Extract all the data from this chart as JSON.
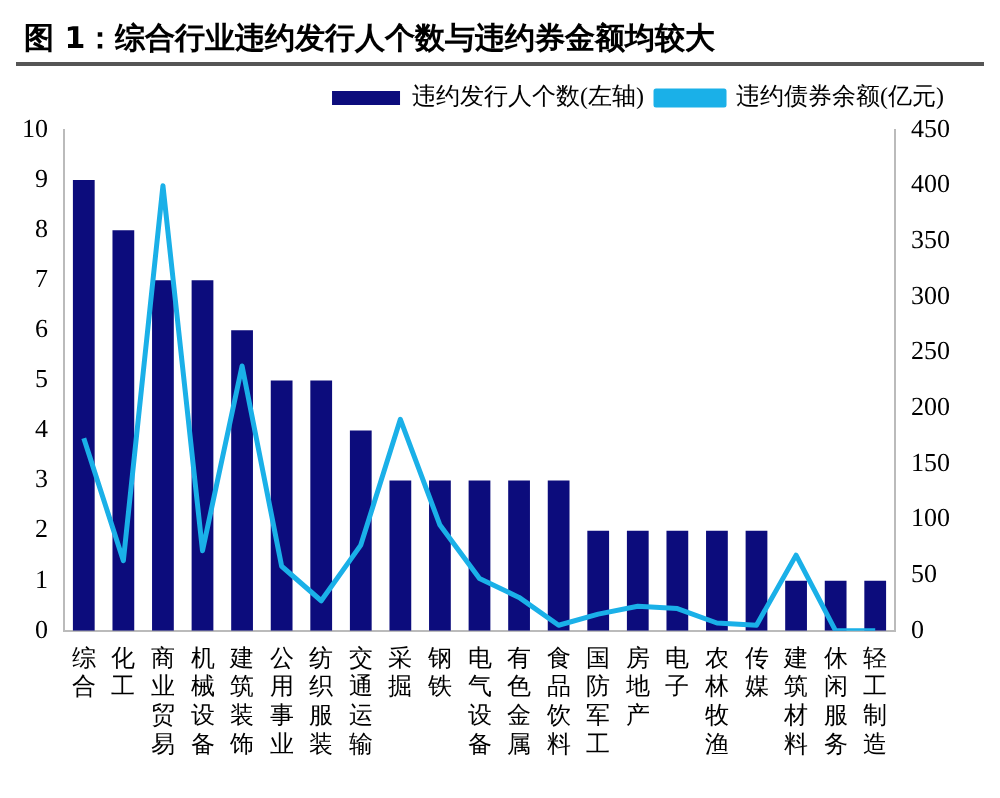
{
  "chart_data": {
    "type": "bar",
    "title": "图 1：综合行业违约发行人个数与违约券金额均较大",
    "categories": [
      "综合",
      "化工",
      "商业贸易",
      "机械设备",
      "建筑装饰",
      "公用事业",
      "纺织服装",
      "交通运输",
      "采掘",
      "钢铁",
      "电气设备",
      "有色金属",
      "食品饮料",
      "国防军工",
      "房地产",
      "电子",
      "农林牧渔",
      "传媒",
      "建筑材料",
      "休闲服务",
      "轻工制造"
    ],
    "series": [
      {
        "name": "违约发行人个数(左轴)",
        "color": "#0c0c7c",
        "values": [
          9,
          8,
          7,
          7,
          6,
          5,
          5,
          4,
          3,
          3,
          3,
          3,
          3,
          2,
          2,
          2,
          2,
          2,
          1,
          1,
          1
        ]
      },
      {
        "name": "违约债券余额(亿元)",
        "type": "line",
        "axis": "y2",
        "color": "#1ab0e8",
        "values": [
          173,
          63,
          400,
          72,
          238,
          58,
          27,
          77,
          190,
          95,
          47,
          30,
          5,
          15,
          22,
          20,
          7,
          5,
          68,
          0,
          0
        ]
      }
    ],
    "ylim": [
      0,
      10
    ],
    "yticks": [
      0,
      1,
      2,
      3,
      4,
      5,
      6,
      7,
      8,
      9,
      10
    ],
    "y2lim": [
      0,
      450
    ],
    "y2ticks": [
      0,
      50,
      100,
      150,
      200,
      250,
      300,
      350,
      400,
      450
    ],
    "grid": false,
    "legend": "top right",
    "marker": "none"
  }
}
